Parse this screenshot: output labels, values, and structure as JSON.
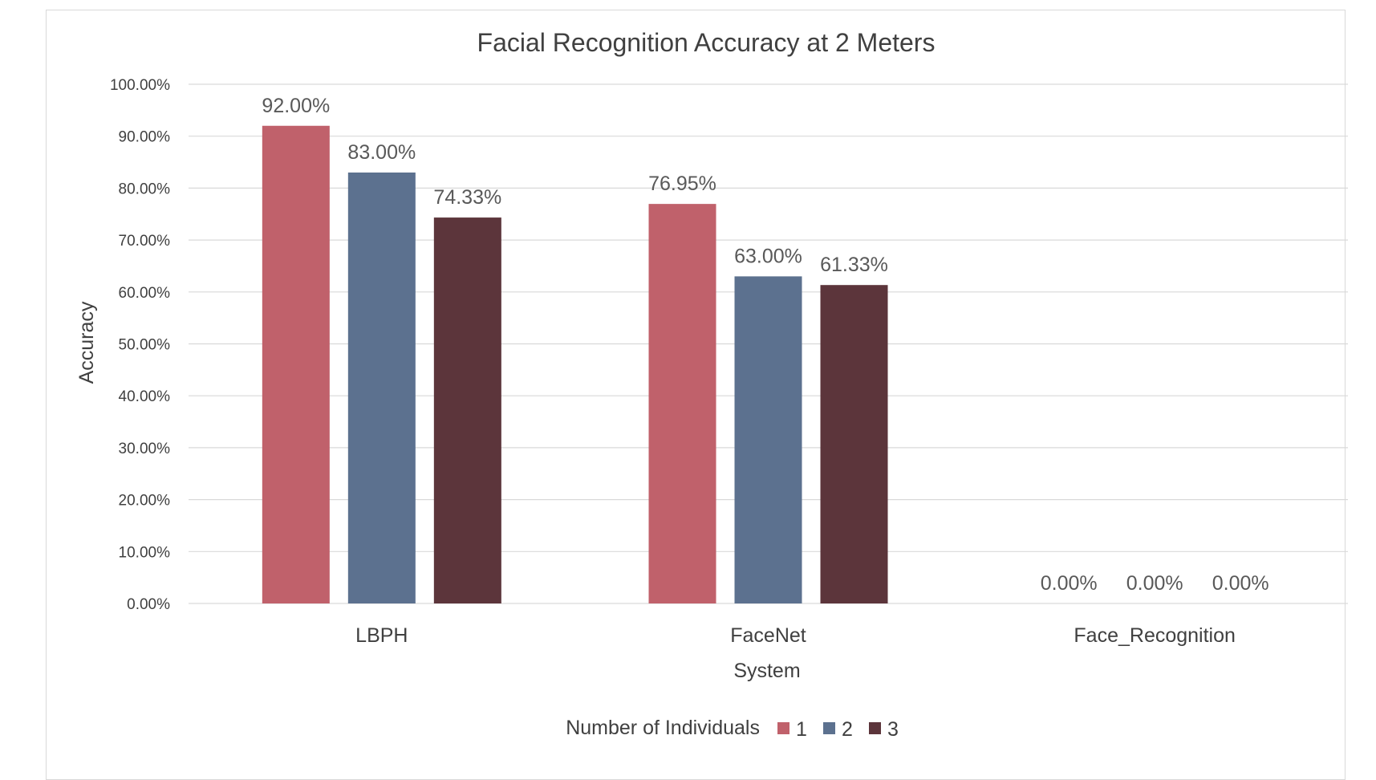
{
  "chart_data": {
    "type": "bar",
    "title": "Facial Recognition Accuracy at 2 Meters",
    "xlabel": "System",
    "ylabel": "Accuracy",
    "categories": [
      "LBPH",
      "FaceNet",
      "Face_Recognition"
    ],
    "series": [
      {
        "name": "1",
        "color": "#c0616b",
        "values": [
          0.92,
          0.7695,
          0.0
        ],
        "labels": [
          "92.00%",
          "76.95%",
          "0.00%"
        ]
      },
      {
        "name": "2",
        "color": "#5c718f",
        "values": [
          0.83,
          0.63,
          0.0
        ],
        "labels": [
          "83.00%",
          "63.00%",
          "0.00%"
        ]
      },
      {
        "name": "3",
        "color": "#5c353b",
        "values": [
          0.7433,
          0.6133,
          0.0
        ],
        "labels": [
          "74.33%",
          "61.33%",
          "0.00%"
        ]
      }
    ],
    "ylim": [
      0,
      1
    ],
    "yticks": [
      "0.00%",
      "10.00%",
      "20.00%",
      "30.00%",
      "40.00%",
      "50.00%",
      "60.00%",
      "70.00%",
      "80.00%",
      "90.00%",
      "100.00%"
    ],
    "grid": true,
    "legend": {
      "title": "Number of Individuals",
      "position": "bottom"
    }
  }
}
